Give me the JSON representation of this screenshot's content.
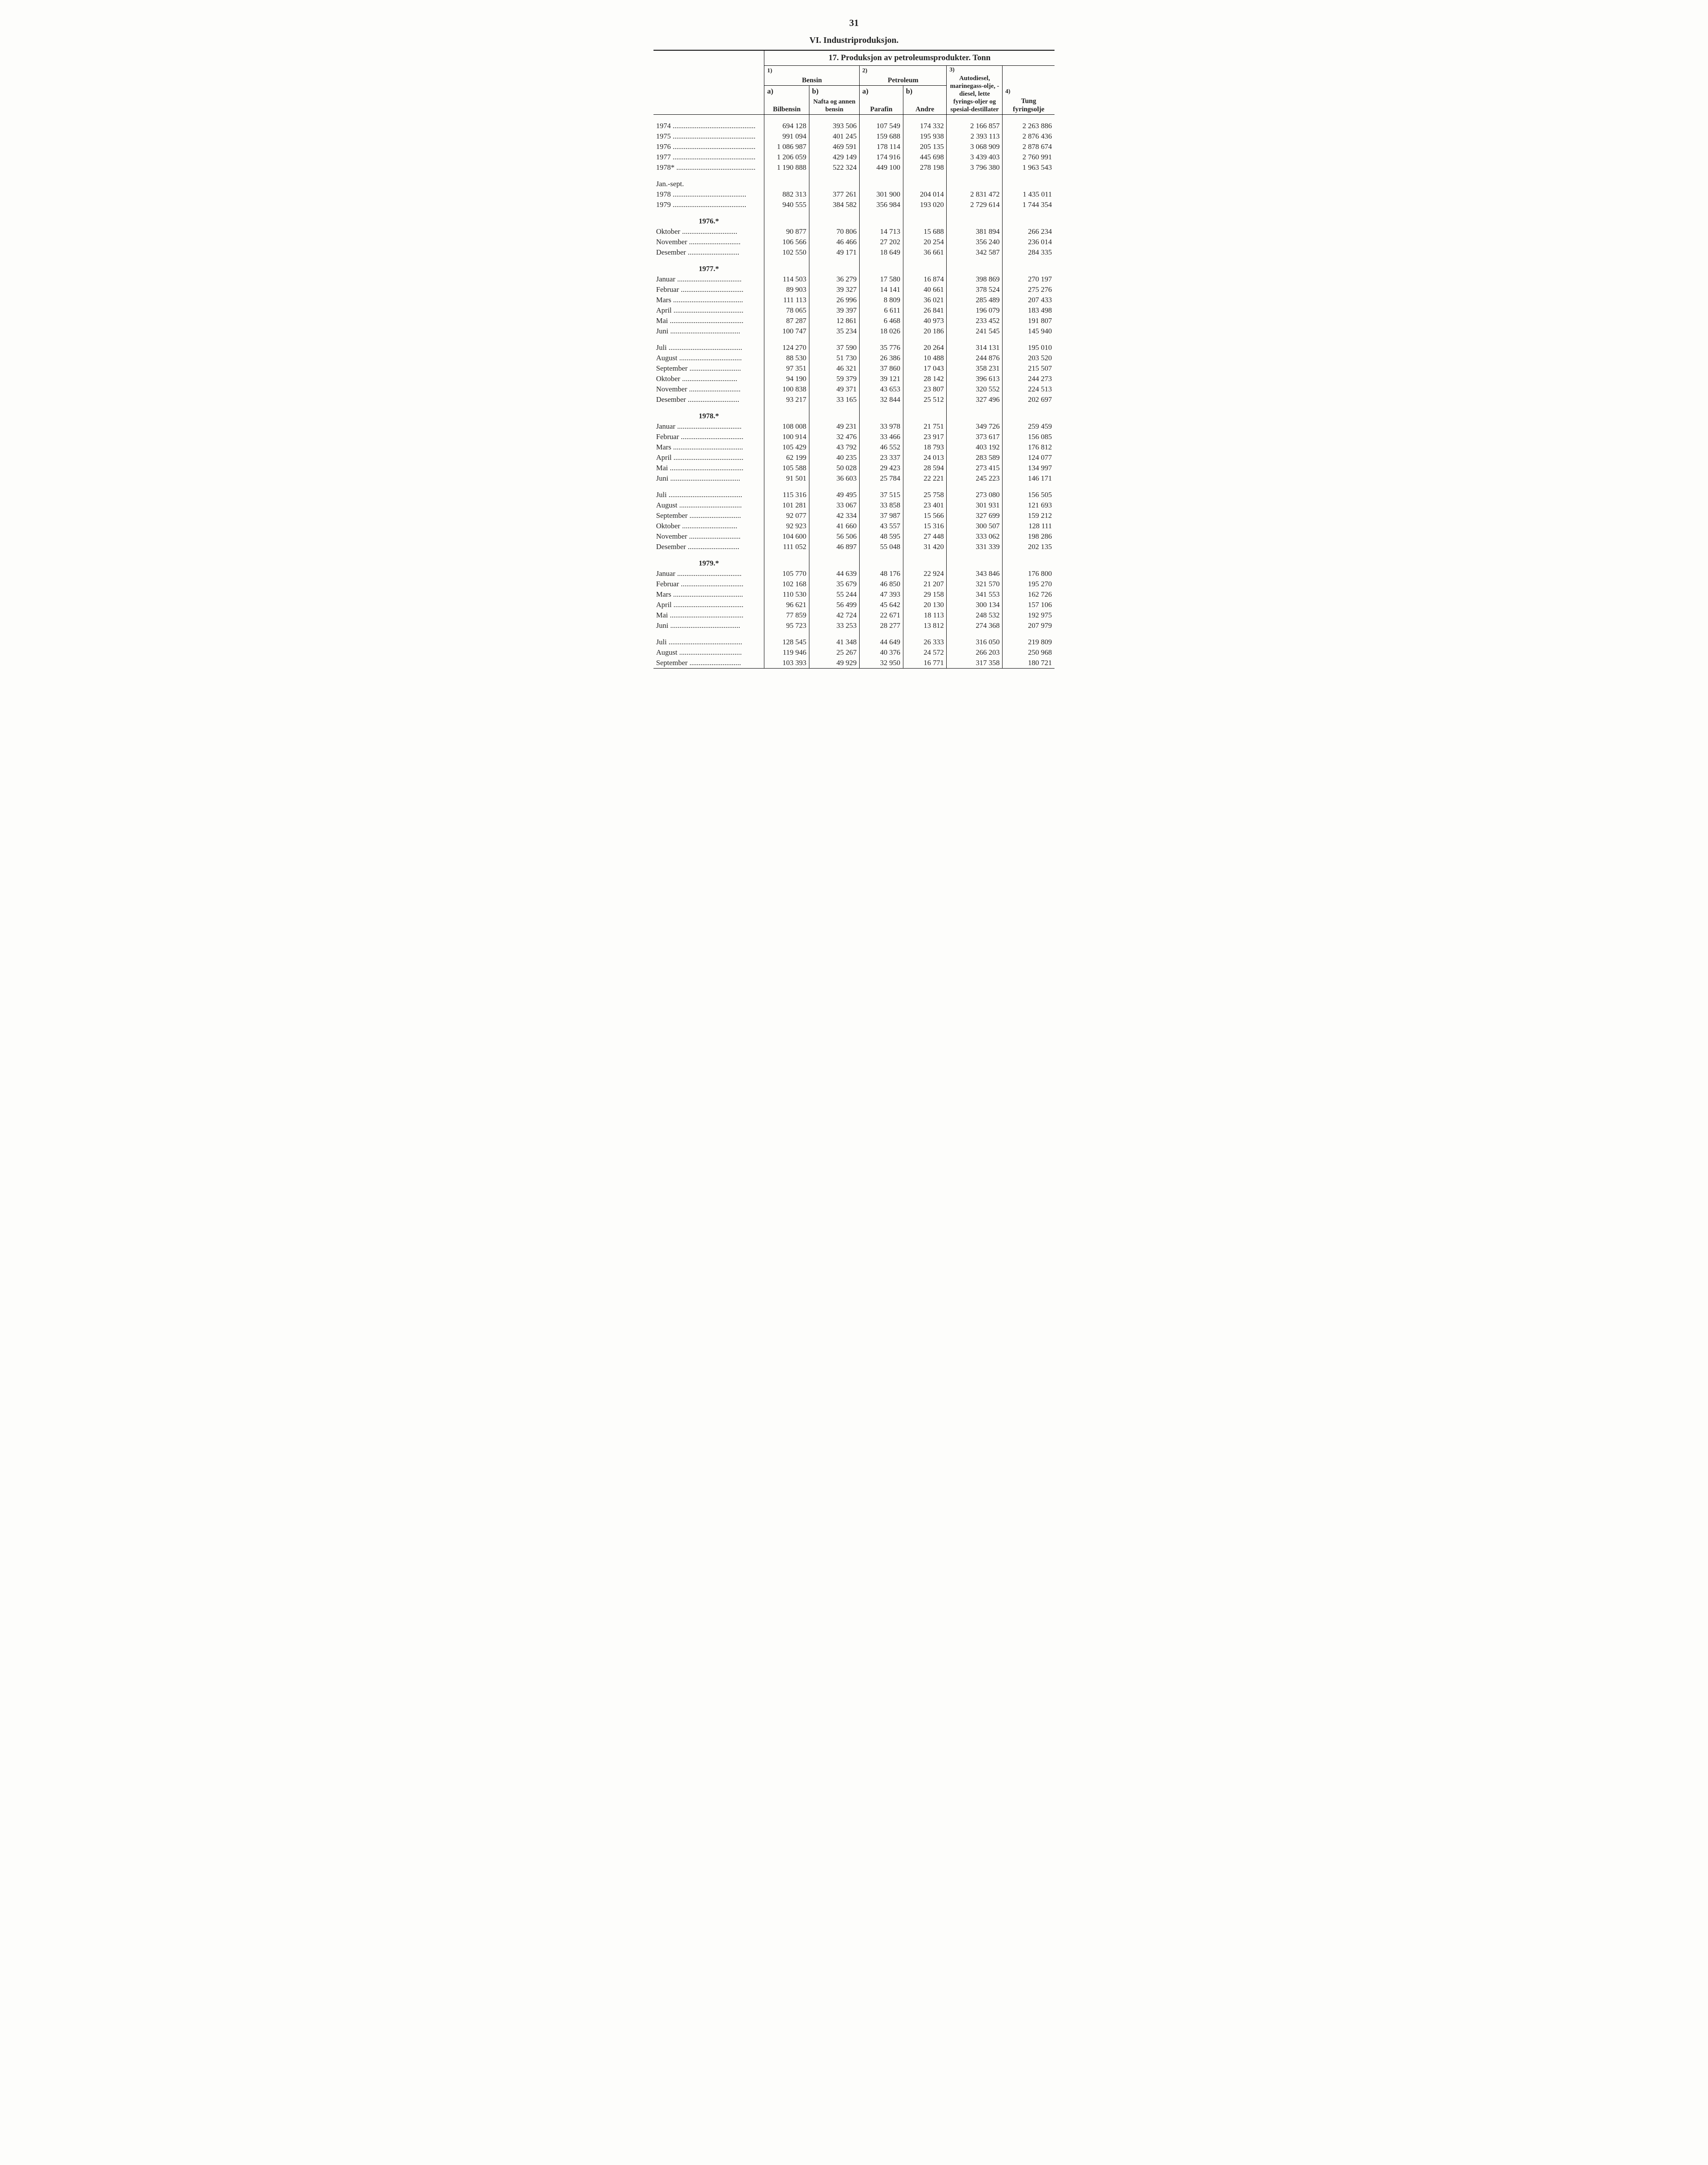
{
  "page_number": "31",
  "section_title": "VI. Industriproduksjon.",
  "table_title": "17. Produksjon av petroleumsprodukter. Tonn",
  "columns": {
    "group_1_num": "1)",
    "group_1_label": "Bensin",
    "group_2_num": "2)",
    "group_2_label": "Petroleum",
    "group_3_num": "3)",
    "group_3_label": "Autodiesel, marinegass-olje, -diesel, lette fyrings-oljer og spesial-destillater",
    "group_4_num": "4)",
    "group_4_label": "Tung fyringsolje",
    "sub_a": "a)",
    "sub_b": "b)",
    "col_bilbensin": "Bilbensin",
    "col_nafta": "Nafta og annen bensin",
    "col_parafin": "Parafin",
    "col_andre": "Andre"
  },
  "groups": [
    {
      "header": null,
      "rows": [
        {
          "label": "1974",
          "dots": 45,
          "v": [
            "694 128",
            "393 506",
            "107 549",
            "174 332",
            "2 166 857",
            "2 263 886"
          ]
        },
        {
          "label": "1975",
          "dots": 45,
          "v": [
            "991 094",
            "401 245",
            "159 688",
            "195 938",
            "2 393 113",
            "2 876 436"
          ]
        },
        {
          "label": "1976",
          "dots": 45,
          "v": [
            "1 086 987",
            "469 591",
            "178 114",
            "205 135",
            "3 068 909",
            "2 878 674"
          ]
        },
        {
          "label": "1977",
          "dots": 45,
          "v": [
            "1 206 059",
            "429 149",
            "174 916",
            "445 698",
            "3 439 403",
            "2 760 991"
          ]
        },
        {
          "label": "1978*",
          "dots": 43,
          "v": [
            "1 190 888",
            "522 324",
            "449 100",
            "278 198",
            "3 796 380",
            "1 963 543"
          ]
        }
      ]
    },
    {
      "header": null,
      "plain_header": "Jan.-sept.",
      "rows": [
        {
          "label": "1978",
          "dots": 40,
          "v": [
            "882 313",
            "377 261",
            "301 900",
            "204 014",
            "2 831 472",
            "1 435 011"
          ]
        },
        {
          "label": "1979",
          "dots": 40,
          "v": [
            "940 555",
            "384 582",
            "356 984",
            "193 020",
            "2 729 614",
            "1 744 354"
          ]
        }
      ]
    },
    {
      "header": "1976.*",
      "rows": [
        {
          "label": "Oktober",
          "dots": 30,
          "v": [
            "90 877",
            "70 806",
            "14 713",
            "15 688",
            "381 894",
            "266 234"
          ]
        },
        {
          "label": "November",
          "dots": 28,
          "v": [
            "106 566",
            "46 466",
            "27 202",
            "20 254",
            "356 240",
            "236 014"
          ]
        },
        {
          "label": "Desember",
          "dots": 28,
          "v": [
            "102 550",
            "49 171",
            "18 649",
            "36 661",
            "342 587",
            "284 335"
          ]
        }
      ]
    },
    {
      "header": "1977.*",
      "rows": [
        {
          "label": "Januar",
          "dots": 35,
          "v": [
            "114 503",
            "36 279",
            "17 580",
            "16 874",
            "398 869",
            "270 197"
          ]
        },
        {
          "label": "Februar",
          "dots": 34,
          "v": [
            "89 903",
            "39 327",
            "14 141",
            "40 661",
            "378 524",
            "275 276"
          ]
        },
        {
          "label": "Mars",
          "dots": 38,
          "v": [
            "111 113",
            "26 996",
            "8 809",
            "36 021",
            "285 489",
            "207 433"
          ]
        },
        {
          "label": "April",
          "dots": 38,
          "v": [
            "78 065",
            "39 397",
            "6 611",
            "26 841",
            "196 079",
            "183 498"
          ]
        },
        {
          "label": "Mai",
          "dots": 40,
          "v": [
            "87 287",
            "12 861",
            "6 468",
            "40 973",
            "233 452",
            "191 807"
          ]
        },
        {
          "label": "Juni",
          "dots": 38,
          "v": [
            "100 747",
            "35 234",
            "18 026",
            "20 186",
            "241 545",
            "145 940"
          ]
        }
      ]
    },
    {
      "header": null,
      "rows": [
        {
          "label": "Juli",
          "dots": 40,
          "v": [
            "124 270",
            "37 590",
            "35 776",
            "20 264",
            "314 131",
            "195 010"
          ]
        },
        {
          "label": "August",
          "dots": 34,
          "v": [
            "88 530",
            "51 730",
            "26 386",
            "10 488",
            "244 876",
            "203 520"
          ]
        },
        {
          "label": "September",
          "dots": 28,
          "v": [
            "97 351",
            "46 321",
            "37 860",
            "17 043",
            "358 231",
            "215 507"
          ]
        },
        {
          "label": "Oktober",
          "dots": 30,
          "v": [
            "94 190",
            "59 379",
            "39 121",
            "28 142",
            "396 613",
            "244 273"
          ]
        },
        {
          "label": "November",
          "dots": 28,
          "v": [
            "100 838",
            "49 371",
            "43 653",
            "23 807",
            "320 552",
            "224 513"
          ]
        },
        {
          "label": "Desember",
          "dots": 28,
          "v": [
            "93 217",
            "33 165",
            "32 844",
            "25 512",
            "327 496",
            "202 697"
          ]
        }
      ]
    },
    {
      "header": "1978.*",
      "rows": [
        {
          "label": "Januar",
          "dots": 35,
          "v": [
            "108 008",
            "49 231",
            "33 978",
            "21 751",
            "349 726",
            "259 459"
          ]
        },
        {
          "label": "Februar",
          "dots": 34,
          "v": [
            "100 914",
            "32 476",
            "33 466",
            "23 917",
            "373 617",
            "156 085"
          ]
        },
        {
          "label": "Mars",
          "dots": 38,
          "v": [
            "105 429",
            "43 792",
            "46 552",
            "18 793",
            "403 192",
            "176 812"
          ]
        },
        {
          "label": "April",
          "dots": 38,
          "v": [
            "62 199",
            "40 235",
            "23 337",
            "24 013",
            "283 589",
            "124 077"
          ]
        },
        {
          "label": "Mai",
          "dots": 40,
          "v": [
            "105 588",
            "50 028",
            "29 423",
            "28 594",
            "273 415",
            "134 997"
          ]
        },
        {
          "label": "Juni",
          "dots": 38,
          "v": [
            "91 501",
            "36 603",
            "25 784",
            "22 221",
            "245 223",
            "146 171"
          ]
        }
      ]
    },
    {
      "header": null,
      "rows": [
        {
          "label": "Juli",
          "dots": 40,
          "v": [
            "115 316",
            "49 495",
            "37 515",
            "25 758",
            "273 080",
            "156 505"
          ]
        },
        {
          "label": "August",
          "dots": 34,
          "v": [
            "101 281",
            "33 067",
            "33 858",
            "23 401",
            "301 931",
            "121 693"
          ]
        },
        {
          "label": "September",
          "dots": 28,
          "v": [
            "92 077",
            "42 334",
            "37 987",
            "15 566",
            "327 699",
            "159 212"
          ]
        },
        {
          "label": "Oktober",
          "dots": 30,
          "v": [
            "92 923",
            "41 660",
            "43 557",
            "15 316",
            "300 507",
            "128 111"
          ]
        },
        {
          "label": "November",
          "dots": 28,
          "v": [
            "104 600",
            "56 506",
            "48 595",
            "27 448",
            "333 062",
            "198 286"
          ]
        },
        {
          "label": "Desember",
          "dots": 28,
          "v": [
            "111 052",
            "46 897",
            "55 048",
            "31 420",
            "331 339",
            "202 135"
          ]
        }
      ]
    },
    {
      "header": "1979.*",
      "rows": [
        {
          "label": "Januar",
          "dots": 35,
          "v": [
            "105 770",
            "44 639",
            "48 176",
            "22 924",
            "343 846",
            "176 800"
          ]
        },
        {
          "label": "Februar",
          "dots": 34,
          "v": [
            "102 168",
            "35 679",
            "46 850",
            "21 207",
            "321 570",
            "195 270"
          ]
        },
        {
          "label": "Mars",
          "dots": 38,
          "v": [
            "110 530",
            "55 244",
            "47 393",
            "29 158",
            "341 553",
            "162 726"
          ]
        },
        {
          "label": "April",
          "dots": 38,
          "v": [
            "96 621",
            "56 499",
            "45 642",
            "20 130",
            "300 134",
            "157 106"
          ]
        },
        {
          "label": "Mai",
          "dots": 40,
          "v": [
            "77 859",
            "42 724",
            "22 671",
            "18 113",
            "248 532",
            "192 975"
          ]
        },
        {
          "label": "Juni",
          "dots": 38,
          "v": [
            "95 723",
            "33 253",
            "28 277",
            "13 812",
            "274 368",
            "207 979"
          ]
        }
      ]
    },
    {
      "header": null,
      "rows": [
        {
          "label": "Juli",
          "dots": 40,
          "v": [
            "128 545",
            "41 348",
            "44 649",
            "26 333",
            "316 050",
            "219 809"
          ]
        },
        {
          "label": "August",
          "dots": 34,
          "v": [
            "119 946",
            "25 267",
            "40 376",
            "24 572",
            "266 203",
            "250 968"
          ]
        },
        {
          "label": "September",
          "dots": 28,
          "v": [
            "103 393",
            "49 929",
            "32 950",
            "16 771",
            "317 358",
            "180 721"
          ]
        }
      ]
    }
  ],
  "style": {
    "label_col_width": 260,
    "data_col_widths": [
      110,
      130,
      110,
      110,
      140,
      130
    ]
  }
}
